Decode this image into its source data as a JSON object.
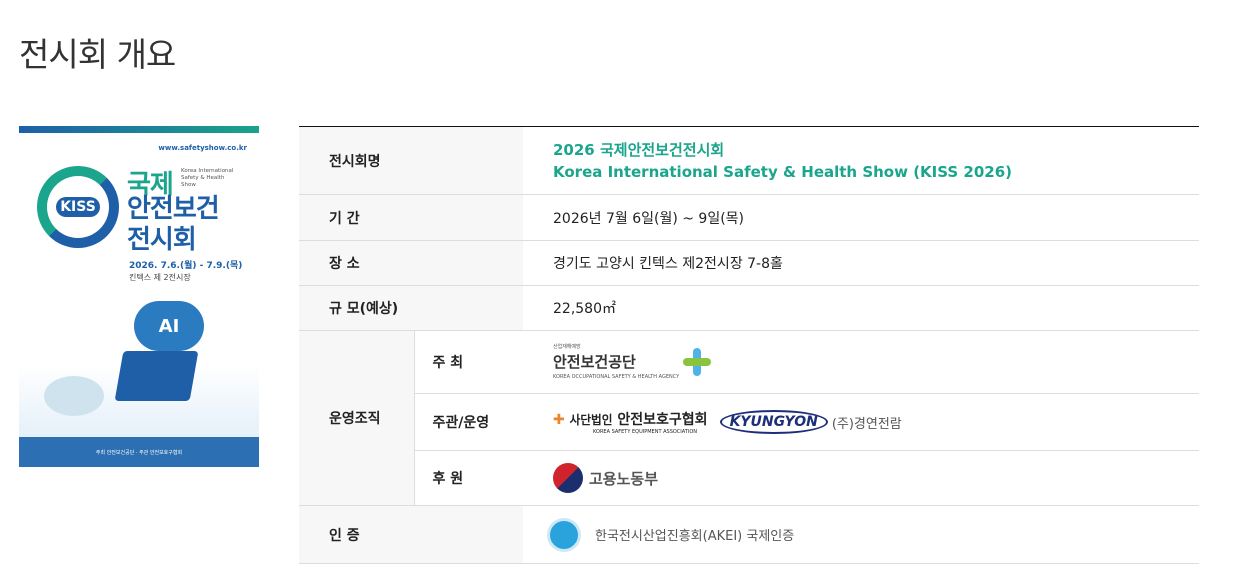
{
  "page_title": "전시회 개요",
  "poster": {
    "url": "www.safetyshow.co.kr",
    "logo_text": "KISS",
    "title_line1": "국제",
    "title_en": "Korea International Safety & Health Show",
    "title_line2": "안전보건",
    "title_line3": "전시회",
    "date": "2026. 7.6.(월) - 7.9.(목)",
    "venue": "킨텍스 제 2전시장",
    "ai_label": "AI",
    "footer": "주최 안전보건공단 · 주관 안전보호구협회"
  },
  "table": {
    "rows": [
      {
        "label": "전시회명",
        "value_line1": "2026 국제안전보건전시회",
        "value_line2": "Korea International Safety & Health Show (KISS 2026)"
      },
      {
        "label": "기 간",
        "value": "2026년 7월 6일(월) ~ 9일(목)"
      },
      {
        "label": "장 소",
        "value": "경기도 고양시 킨텍스 제2전시장 7-8홀"
      },
      {
        "label": "규 모(예상)",
        "value": "22,580㎡"
      }
    ],
    "org": {
      "label": "운영조직",
      "host": {
        "label": "주 최",
        "logo_small": "산업재해예방",
        "logo_name": "안전보건공단",
        "logo_en": "KOREA OCCUPATIONAL SAFETY & HEALTH AGENCY"
      },
      "organizer": {
        "label": "주관/운영",
        "logo1_prefix": "사단법인",
        "logo1_name": "안전보호구협회",
        "logo1_en": "KOREA SAFETY EQUIPMENT ASSOCIATION",
        "logo2": "KYUNGYON",
        "logo2_name": "(주)경연전람"
      },
      "sponsor": {
        "label": "후 원",
        "name": "고용노동부"
      }
    },
    "cert": {
      "label": "인 증",
      "value": "한국전시산업진흥회(AKEI) 국제인증"
    }
  }
}
